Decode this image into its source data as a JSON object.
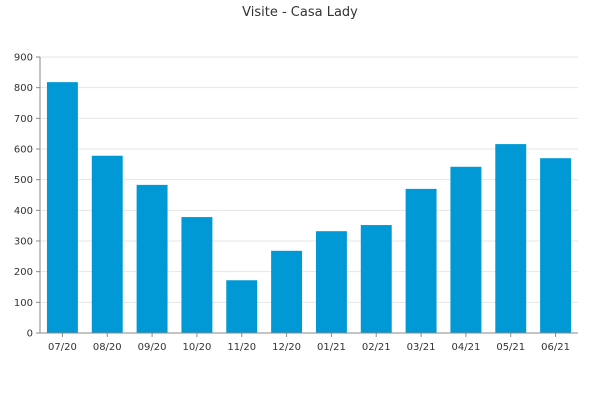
{
  "chart_data": {
    "type": "bar",
    "title": "Visite - Casa Lady",
    "xlabel": "",
    "ylabel": "",
    "categories": [
      "07/20",
      "08/20",
      "09/20",
      "10/20",
      "11/20",
      "12/20",
      "01/21",
      "02/21",
      "03/21",
      "04/21",
      "05/21",
      "06/21"
    ],
    "values": [
      818,
      578,
      483,
      378,
      172,
      268,
      332,
      352,
      470,
      542,
      616,
      570
    ],
    "ylim": [
      0,
      900
    ],
    "yticks": [
      0,
      100,
      200,
      300,
      400,
      500,
      600,
      700,
      800,
      900
    ],
    "grid": true,
    "legend": "none",
    "bar_color": "#0099d6"
  }
}
